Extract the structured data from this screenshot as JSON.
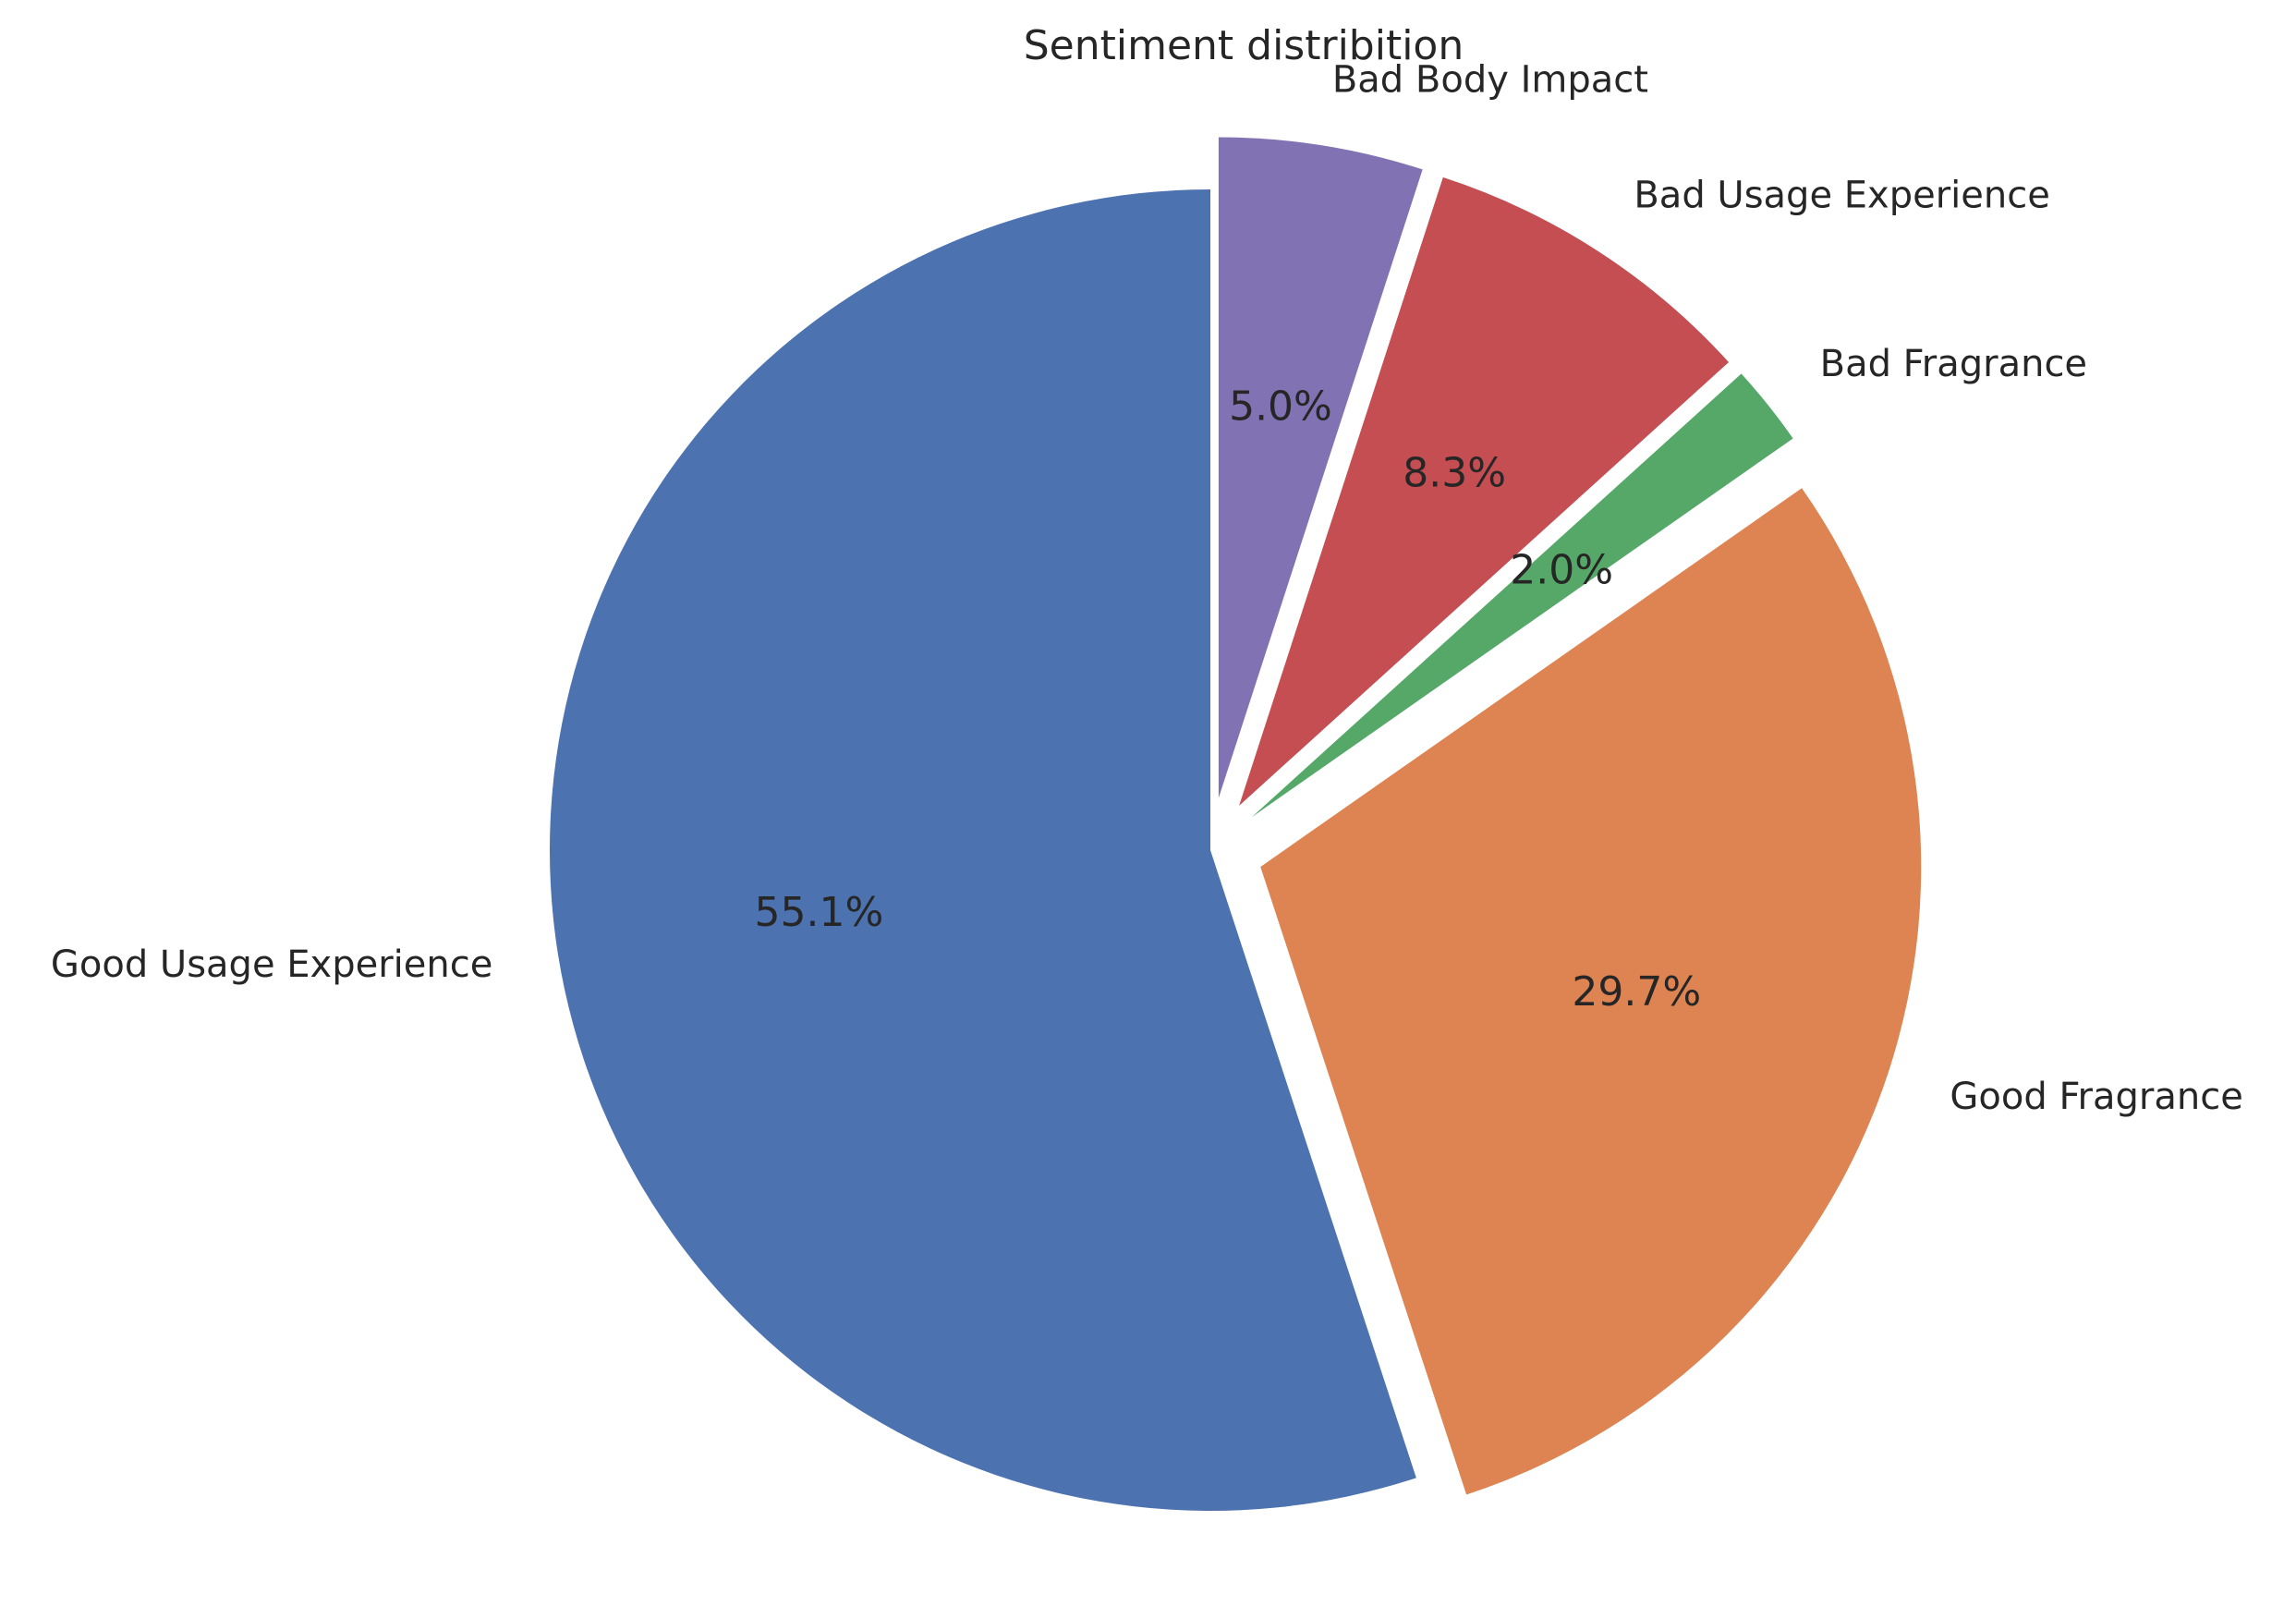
{
  "chart_data": {
    "type": "pie",
    "title": "Sentiment distribition",
    "categories": [
      "Good Usage Experience",
      "Good Fragrance",
      "Bad Fragrance",
      "Bad Usage Experience",
      "Bad Body Impact"
    ],
    "values": [
      55.1,
      29.7,
      2.0,
      8.3,
      5.0
    ],
    "value_labels": [
      "55.1%",
      "29.7%",
      "2.0%",
      "8.3%",
      "5.0%"
    ],
    "colors": [
      "#4c72b0",
      "#dd8452",
      "#55a868",
      "#c44e52",
      "#8172b3"
    ],
    "exploded": [
      false,
      true,
      true,
      true,
      true
    ],
    "start_angle_deg": 90,
    "direction": "counterclockwise"
  }
}
